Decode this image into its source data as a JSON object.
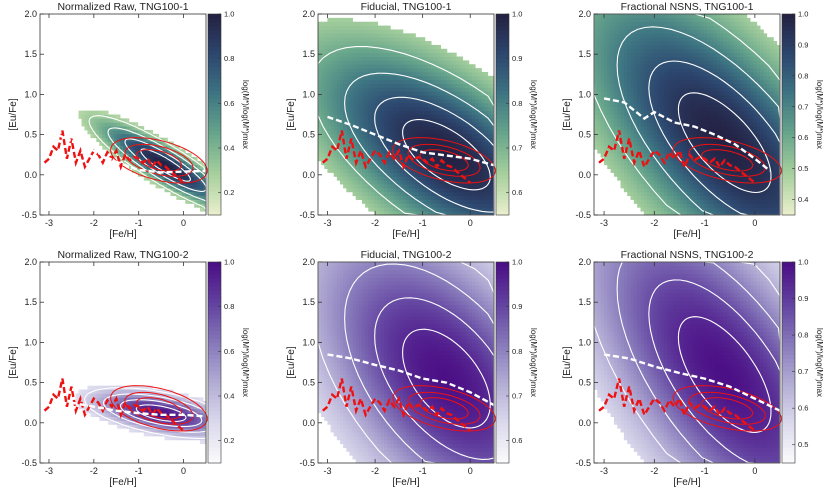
{
  "chart_data": [
    {
      "type": "heatmap",
      "title": "Normalized Raw, TNG100-1",
      "xlabel": "[Fe/H]",
      "ylabel": "[Eu/Fe]",
      "xlim": [
        -3.2,
        0.5
      ],
      "ylim": [
        -0.5,
        2.0
      ],
      "xticks": [
        -3,
        -2,
        -1,
        0
      ],
      "yticks": [
        -0.5,
        0.0,
        0.5,
        1.0,
        1.5,
        2.0
      ],
      "colorbar": {
        "label": "log(M*)/log(M*)max",
        "ticks": [
          "0.2",
          "0.4",
          "0.6",
          "0.8",
          "1.0"
        ],
        "min": 0.1,
        "max": 1.0,
        "palette": "green"
      },
      "density": {
        "kind": "raw",
        "cx": -0.4,
        "cy": 0.12,
        "sx": 0.9,
        "sy": 0.15,
        "slope": -0.32
      },
      "median_line": {
        "color": "#ffffff",
        "x": [
          -3.0,
          -2.5,
          -2.0,
          -1.5,
          -1.0,
          -0.5,
          0.0,
          0.5
        ],
        "y": [
          0.55,
          0.42,
          0.3,
          0.16,
          0.06,
          0.03,
          0.04,
          0.05
        ]
      },
      "observations": {
        "color": "#ee1111",
        "x": [
          -3.1,
          -3.0,
          -2.9,
          -2.8,
          -2.7,
          -2.6,
          -2.5,
          -2.4,
          -2.3,
          -2.2,
          -2.1,
          -2.0,
          -1.9,
          -1.8,
          -1.7,
          -1.6,
          -1.5,
          -1.4,
          -1.3,
          -1.2,
          -1.1,
          -1.0,
          -0.9,
          -0.8,
          -0.7,
          -0.6,
          -0.5,
          -0.4,
          -0.3,
          -0.2,
          -0.1,
          0.0
        ],
        "y": [
          0.15,
          0.2,
          0.35,
          0.3,
          0.55,
          0.2,
          0.45,
          0.15,
          0.3,
          0.1,
          0.2,
          0.3,
          0.25,
          0.15,
          0.28,
          0.2,
          0.3,
          0.1,
          0.25,
          0.18,
          0.22,
          0.2,
          0.15,
          0.2,
          0.1,
          0.18,
          0.12,
          0.1,
          0.05,
          0.0,
          -0.05,
          -0.1
        ]
      }
    },
    {
      "type": "heatmap",
      "title": "Fiducial, TNG100-1",
      "xlabel": "[Fe/H]",
      "ylabel": "[Eu/Fe]",
      "xlim": [
        -3.2,
        0.5
      ],
      "ylim": [
        -0.5,
        2.0
      ],
      "xticks": [
        -3,
        -2,
        -1,
        0
      ],
      "yticks": [
        -0.5,
        0.0,
        0.5,
        1.0,
        1.5,
        2.0
      ],
      "colorbar": {
        "label": "log(M*)/log(M*)max",
        "ticks": [
          "0.6",
          "0.7",
          "0.8",
          "0.9",
          "1.0"
        ],
        "min": 0.55,
        "max": 1.0,
        "palette": "green"
      },
      "density": {
        "kind": "broad",
        "cx": -0.5,
        "cy": 0.25,
        "sx": 1.5,
        "sy": 0.55,
        "slope": -0.3
      },
      "median_line": {
        "color": "#ffffff",
        "x": [
          -3.0,
          -2.5,
          -2.0,
          -1.5,
          -1.0,
          -0.5,
          0.0,
          0.5
        ],
        "y": [
          0.72,
          0.62,
          0.5,
          0.38,
          0.28,
          0.24,
          0.2,
          0.12
        ]
      },
      "observations": {
        "color": "#ee1111",
        "x": [
          -3.1,
          -3.0,
          -2.9,
          -2.8,
          -2.7,
          -2.6,
          -2.5,
          -2.4,
          -2.3,
          -2.2,
          -2.1,
          -2.0,
          -1.9,
          -1.8,
          -1.7,
          -1.6,
          -1.5,
          -1.4,
          -1.3,
          -1.2,
          -1.1,
          -1.0,
          -0.9,
          -0.8,
          -0.7,
          -0.6,
          -0.5,
          -0.4,
          -0.3,
          -0.2,
          -0.1,
          0.0
        ],
        "y": [
          0.15,
          0.2,
          0.35,
          0.3,
          0.55,
          0.2,
          0.45,
          0.15,
          0.3,
          0.1,
          0.2,
          0.3,
          0.25,
          0.15,
          0.28,
          0.2,
          0.3,
          0.1,
          0.25,
          0.18,
          0.22,
          0.2,
          0.15,
          0.2,
          0.1,
          0.18,
          0.12,
          0.1,
          0.05,
          0.0,
          -0.05,
          -0.1
        ]
      }
    },
    {
      "type": "heatmap",
      "title": "Fractional NSNS, TNG100-1",
      "xlabel": "[Fe/H]",
      "ylabel": "[Eu/Fe]",
      "xlim": [
        -3.2,
        0.5
      ],
      "ylim": [
        -0.5,
        2.0
      ],
      "xticks": [
        -3,
        -2,
        -1,
        0
      ],
      "yticks": [
        -0.5,
        0.0,
        0.5,
        1.0,
        1.5,
        2.0
      ],
      "colorbar": {
        "label": "log(M*)/log(M*)max",
        "ticks": [
          "0.4",
          "0.5",
          "0.6",
          "0.7",
          "0.8",
          "0.9",
          "1.0"
        ],
        "min": 0.35,
        "max": 1.0,
        "palette": "green"
      },
      "density": {
        "kind": "tall",
        "cx": -0.6,
        "cy": 0.4,
        "sx": 1.5,
        "sy": 0.75,
        "slope": -0.45
      },
      "median_line": {
        "color": "#ffffff",
        "x": [
          -3.0,
          -2.6,
          -2.2,
          -2.0,
          -1.6,
          -1.2,
          -0.8,
          -0.4,
          0.0,
          0.3
        ],
        "y": [
          0.95,
          0.9,
          0.7,
          0.78,
          0.65,
          0.6,
          0.5,
          0.38,
          0.2,
          0.05
        ]
      },
      "observations": {
        "color": "#ee1111",
        "x": [
          -3.1,
          -3.0,
          -2.9,
          -2.8,
          -2.7,
          -2.6,
          -2.5,
          -2.4,
          -2.3,
          -2.2,
          -2.1,
          -2.0,
          -1.9,
          -1.8,
          -1.7,
          -1.6,
          -1.5,
          -1.4,
          -1.3,
          -1.2,
          -1.1,
          -1.0,
          -0.9,
          -0.8,
          -0.7,
          -0.6,
          -0.5,
          -0.4,
          -0.3,
          -0.2,
          -0.1,
          0.0
        ],
        "y": [
          0.15,
          0.2,
          0.35,
          0.3,
          0.55,
          0.2,
          0.45,
          0.15,
          0.3,
          0.1,
          0.2,
          0.3,
          0.25,
          0.15,
          0.28,
          0.2,
          0.3,
          0.1,
          0.25,
          0.18,
          0.22,
          0.2,
          0.15,
          0.2,
          0.1,
          0.18,
          0.12,
          0.1,
          0.05,
          0.0,
          -0.05,
          -0.1
        ]
      }
    },
    {
      "type": "heatmap",
      "title": "Normalized Raw, TNG100-2",
      "xlabel": "[Fe/H]",
      "ylabel": "[Eu/Fe]",
      "xlim": [
        -3.2,
        0.5
      ],
      "ylim": [
        -0.5,
        2.0
      ],
      "xticks": [
        -3,
        -2,
        -1,
        0
      ],
      "yticks": [
        -0.5,
        0.0,
        0.5,
        1.0,
        1.5,
        2.0
      ],
      "colorbar": {
        "label": "log(M*)/log(M*)max",
        "ticks": [
          "0.2",
          "0.4",
          "0.6",
          "0.8",
          "1.0"
        ],
        "min": 0.1,
        "max": 1.0,
        "palette": "purple"
      },
      "density": {
        "kind": "raw",
        "cx": -0.5,
        "cy": 0.12,
        "sx": 0.9,
        "sy": 0.14,
        "slope": -0.1
      },
      "median_line": {
        "color": "#ffffff",
        "x": [
          -2.5,
          -2.0,
          -1.5,
          -1.0,
          -0.5,
          0.0,
          0.5
        ],
        "y": [
          0.25,
          0.2,
          0.15,
          0.12,
          0.1,
          0.1,
          0.08
        ]
      },
      "observations": {
        "color": "#ee1111",
        "x": [
          -3.1,
          -3.0,
          -2.9,
          -2.8,
          -2.7,
          -2.6,
          -2.5,
          -2.4,
          -2.3,
          -2.2,
          -2.1,
          -2.0,
          -1.9,
          -1.8,
          -1.7,
          -1.6,
          -1.5,
          -1.4,
          -1.3,
          -1.2,
          -1.1,
          -1.0,
          -0.9,
          -0.8,
          -0.7,
          -0.6,
          -0.5,
          -0.4,
          -0.3,
          -0.2,
          -0.1,
          0.0
        ],
        "y": [
          0.15,
          0.2,
          0.35,
          0.3,
          0.55,
          0.2,
          0.45,
          0.15,
          0.3,
          0.1,
          0.2,
          0.3,
          0.25,
          0.15,
          0.28,
          0.2,
          0.3,
          0.1,
          0.25,
          0.18,
          0.22,
          0.2,
          0.15,
          0.2,
          0.1,
          0.18,
          0.12,
          0.1,
          0.05,
          0.0,
          -0.05,
          -0.1
        ]
      }
    },
    {
      "type": "heatmap",
      "title": "Fiducial, TNG100-2",
      "xlabel": "[Fe/H]",
      "ylabel": "[Eu/Fe]",
      "xlim": [
        -3.2,
        0.5
      ],
      "ylim": [
        -0.5,
        2.0
      ],
      "xticks": [
        -3,
        -2,
        -1,
        0
      ],
      "yticks": [
        -0.5,
        0.0,
        0.5,
        1.0,
        1.5,
        2.0
      ],
      "colorbar": {
        "label": "log(M*)/log(M*)max",
        "ticks": [
          "0.6",
          "0.7",
          "0.8",
          "0.9",
          "1.0"
        ],
        "min": 0.55,
        "max": 1.0,
        "palette": "purple"
      },
      "density": {
        "kind": "tall",
        "cx": -0.5,
        "cy": 0.55,
        "sx": 1.5,
        "sy": 0.85,
        "slope": -0.35
      },
      "median_line": {
        "color": "#ffffff",
        "x": [
          -3.0,
          -2.5,
          -2.0,
          -1.5,
          -1.0,
          -0.5,
          0.0,
          0.5
        ],
        "y": [
          0.85,
          0.8,
          0.72,
          0.65,
          0.55,
          0.5,
          0.38,
          0.22
        ]
      },
      "observations": {
        "color": "#ee1111",
        "x": [
          -3.1,
          -3.0,
          -2.9,
          -2.8,
          -2.7,
          -2.6,
          -2.5,
          -2.4,
          -2.3,
          -2.2,
          -2.1,
          -2.0,
          -1.9,
          -1.8,
          -1.7,
          -1.6,
          -1.5,
          -1.4,
          -1.3,
          -1.2,
          -1.1,
          -1.0,
          -0.9,
          -0.8,
          -0.7,
          -0.6,
          -0.5,
          -0.4,
          -0.3,
          -0.2,
          -0.1,
          0.0
        ],
        "y": [
          0.15,
          0.2,
          0.35,
          0.3,
          0.55,
          0.2,
          0.45,
          0.15,
          0.3,
          0.1,
          0.2,
          0.3,
          0.25,
          0.15,
          0.28,
          0.2,
          0.3,
          0.1,
          0.25,
          0.18,
          0.22,
          0.2,
          0.15,
          0.2,
          0.1,
          0.18,
          0.12,
          0.1,
          0.05,
          0.0,
          -0.05,
          -0.1
        ]
      }
    },
    {
      "type": "heatmap",
      "title": "Fractional NSNS, TNG100-2",
      "xlabel": "[Fe/H]",
      "ylabel": "[Eu/Fe]",
      "xlim": [
        -3.2,
        0.5
      ],
      "ylim": [
        -0.5,
        2.0
      ],
      "xticks": [
        -3,
        -2,
        -1,
        0
      ],
      "yticks": [
        -0.5,
        0.0,
        0.5,
        1.0,
        1.5,
        2.0
      ],
      "colorbar": {
        "label": "log(M*)/log(M*)max",
        "ticks": [
          "0.5",
          "0.6",
          "0.7",
          "0.8",
          "0.9",
          "1.0"
        ],
        "min": 0.45,
        "max": 1.0,
        "palette": "purple"
      },
      "density": {
        "kind": "tall",
        "cx": -0.6,
        "cy": 0.6,
        "sx": 1.5,
        "sy": 0.9,
        "slope": -0.5
      },
      "median_line": {
        "color": "#ffffff",
        "x": [
          -3.0,
          -2.5,
          -2.0,
          -1.5,
          -1.0,
          -0.5,
          0.0,
          0.5
        ],
        "y": [
          0.85,
          0.8,
          0.7,
          0.62,
          0.55,
          0.45,
          0.3,
          0.15
        ]
      },
      "observations": {
        "color": "#ee1111",
        "x": [
          -3.1,
          -3.0,
          -2.9,
          -2.8,
          -2.7,
          -2.6,
          -2.5,
          -2.4,
          -2.3,
          -2.2,
          -2.1,
          -2.0,
          -1.9,
          -1.8,
          -1.7,
          -1.6,
          -1.5,
          -1.4,
          -1.3,
          -1.2,
          -1.1,
          -1.0,
          -0.9,
          -0.8,
          -0.7,
          -0.6,
          -0.5,
          -0.4,
          -0.3,
          -0.2,
          -0.1,
          0.0
        ],
        "y": [
          0.15,
          0.2,
          0.35,
          0.3,
          0.55,
          0.2,
          0.45,
          0.15,
          0.3,
          0.1,
          0.2,
          0.3,
          0.25,
          0.15,
          0.28,
          0.2,
          0.3,
          0.1,
          0.25,
          0.18,
          0.22,
          0.2,
          0.15,
          0.2,
          0.1,
          0.18,
          0.12,
          0.1,
          0.05,
          0.0,
          -0.05,
          -0.1
        ]
      }
    }
  ]
}
